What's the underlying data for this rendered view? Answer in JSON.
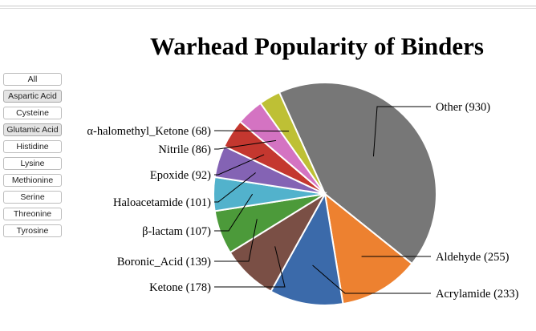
{
  "sidebar": {
    "buttons": [
      {
        "label": "All",
        "selected": false
      },
      {
        "label": "Aspartic Acid",
        "selected": true
      },
      {
        "label": "Cysteine",
        "selected": false
      },
      {
        "label": "Glutamic Acid",
        "selected": true
      },
      {
        "label": "Histidine",
        "selected": false
      },
      {
        "label": "Lysine",
        "selected": false
      },
      {
        "label": "Methionine",
        "selected": false
      },
      {
        "label": "Serine",
        "selected": false
      },
      {
        "label": "Threonine",
        "selected": false
      },
      {
        "label": "Tyrosine",
        "selected": false
      }
    ]
  },
  "chart_data": {
    "type": "pie",
    "title": "Warhead Popularity of Binders",
    "slices": [
      {
        "label": "Other (930)",
        "value": 930,
        "color": "#777777"
      },
      {
        "label": "Aldehyde (255)",
        "value": 255,
        "color": "#ed8130"
      },
      {
        "label": "Acrylamide (233)",
        "value": 233,
        "color": "#3b6aaa"
      },
      {
        "label": "Ketone (178)",
        "value": 178,
        "color": "#7a4f45"
      },
      {
        "label": "Boronic_Acid (139)",
        "value": 139,
        "color": "#4c9a3a"
      },
      {
        "label": "β-lactam (107)",
        "value": 107,
        "color": "#52b2cc"
      },
      {
        "label": "Haloacetamide (101)",
        "value": 101,
        "color": "#8463b4"
      },
      {
        "label": "Epoxide (92)",
        "value": 92,
        "color": "#c4372f"
      },
      {
        "label": "Nitrile (86)",
        "value": 86,
        "color": "#d473c2"
      },
      {
        "label": "α-halomethyl_Ketone (68)",
        "value": 68,
        "color": "#bec035"
      }
    ]
  }
}
